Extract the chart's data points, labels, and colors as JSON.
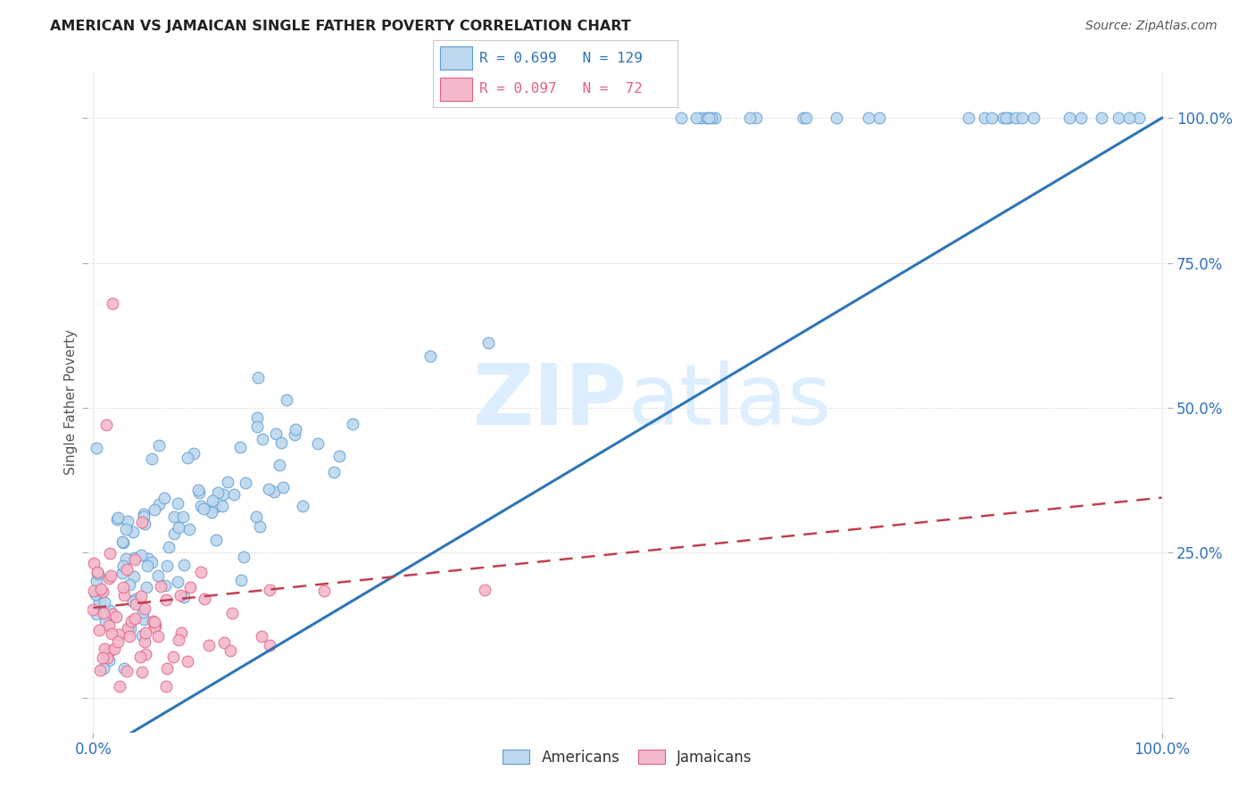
{
  "title": "AMERICAN VS JAMAICAN SINGLE FATHER POVERTY CORRELATION CHART",
  "source": "Source: ZipAtlas.com",
  "ylabel": "Single Father Poverty",
  "legend_american_R": "0.699",
  "legend_american_N": "129",
  "legend_jamaican_R": "0.097",
  "legend_jamaican_N": " 72",
  "american_fill": "#bdd7ee",
  "american_edge": "#5b9bd5",
  "jamaican_fill": "#f4b8cb",
  "jamaican_edge": "#e06080",
  "american_line_color": "#2e75b6",
  "jamaican_line_color": "#c0404f",
  "watermark_color": "#dceeff",
  "background_color": "#ffffff",
  "title_color": "#222222",
  "axis_color": "#3070c0",
  "ylabel_color": "#555555",
  "source_color": "#555555",
  "grid_color": "#dddddd",
  "xlim": [
    -0.005,
    1.005
  ],
  "ylim": [
    -0.06,
    1.08
  ],
  "yticks": [
    0.0,
    0.25,
    0.5,
    0.75,
    1.0
  ],
  "ytick_labels_right": [
    "",
    "25.0%",
    "50.0%",
    "75.0%",
    "100.0%"
  ],
  "xtick_left": "0.0%",
  "xtick_right": "100.0%"
}
